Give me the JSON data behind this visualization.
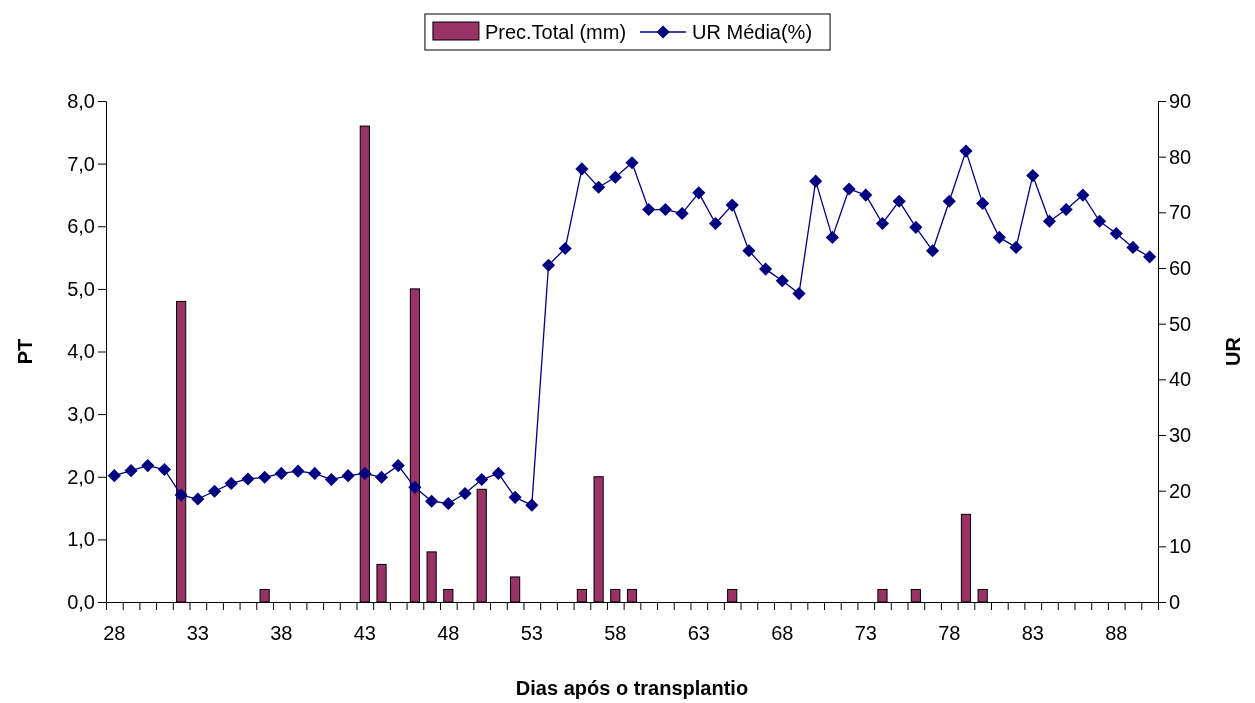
{
  "chart_data": {
    "type": "bar",
    "xlabel": "Dias após o transplantio",
    "ylabel": "PT",
    "y2label": "UR",
    "categories": [
      "28",
      null,
      null,
      null,
      null,
      "33",
      null,
      null,
      null,
      null,
      "38",
      null,
      null,
      null,
      null,
      "43",
      null,
      null,
      null,
      null,
      "48",
      null,
      null,
      null,
      null,
      "53",
      null,
      null,
      null,
      null,
      "58",
      null,
      null,
      null,
      null,
      "63",
      null,
      null,
      null,
      null,
      "68",
      null,
      null,
      null,
      null,
      "73",
      null,
      null,
      null,
      null,
      "78",
      null,
      null,
      null,
      null,
      "83",
      null,
      null,
      null,
      null,
      "88",
      null,
      null
    ],
    "series": [
      {
        "name": "Prec.Total (mm)",
        "color": "#993366",
        "values": [
          0,
          0,
          0,
          0,
          4.8,
          0,
          0,
          0,
          0,
          0.2,
          0,
          0,
          0,
          0,
          0,
          7.6,
          0.6,
          0,
          5.0,
          0.8,
          0.2,
          0,
          1.8,
          0,
          0.4,
          0,
          0,
          0,
          0.2,
          2.0,
          0.2,
          0.2,
          0,
          0,
          0,
          0,
          0,
          0.2,
          0,
          0,
          0,
          0,
          0,
          0,
          0,
          0,
          0.2,
          0,
          0.2,
          0,
          0,
          1.4,
          0.2,
          0,
          0,
          0,
          0,
          0,
          0,
          0,
          0,
          0,
          0
        ]
      },
      {
        "name": "UR Média(%)",
        "type": "line",
        "axis": "y2",
        "color": "#000080",
        "values": [
          22.7,
          23.6,
          24.5,
          23.8,
          19.2,
          18.5,
          19.9,
          21.3,
          22.1,
          22.4,
          23.1,
          23.5,
          23.1,
          22.0,
          22.7,
          23.1,
          22.4,
          24.5,
          20.6,
          18.1,
          17.7,
          19.5,
          22.0,
          23.1,
          18.8,
          17.4,
          60.5,
          63.5,
          77.8,
          74.5,
          76.3,
          78.9,
          70.5,
          70.5,
          69.8,
          73.5,
          68.0,
          71.3,
          63.1,
          59.8,
          57.7,
          55.4,
          75.6,
          65.5,
          74.2,
          73.1,
          68.0,
          72.0,
          67.3,
          63.1,
          72.0,
          81.0,
          71.6,
          65.5,
          63.7,
          76.6,
          68.4,
          70.5,
          73.1,
          68.4,
          66.2,
          63.7,
          62.0
        ]
      }
    ],
    "ylim": [
      0,
      8
    ],
    "yticks": [
      {
        "value": 0,
        "label": "0,0"
      },
      {
        "value": 1,
        "label": "1,0"
      },
      {
        "value": 2,
        "label": "2,0"
      },
      {
        "value": 3,
        "label": "3,0"
      },
      {
        "value": 4,
        "label": "4,0"
      },
      {
        "value": 5,
        "label": "5,0"
      },
      {
        "value": 6,
        "label": "6,0"
      },
      {
        "value": 7,
        "label": "7,0"
      },
      {
        "value": 8,
        "label": "8,0"
      }
    ],
    "y2lim": [
      0,
      90
    ],
    "y2ticks": [
      0,
      10,
      20,
      30,
      40,
      50,
      60,
      70,
      80,
      90
    ],
    "marker": "diamond",
    "legend": "top",
    "grid": false
  }
}
